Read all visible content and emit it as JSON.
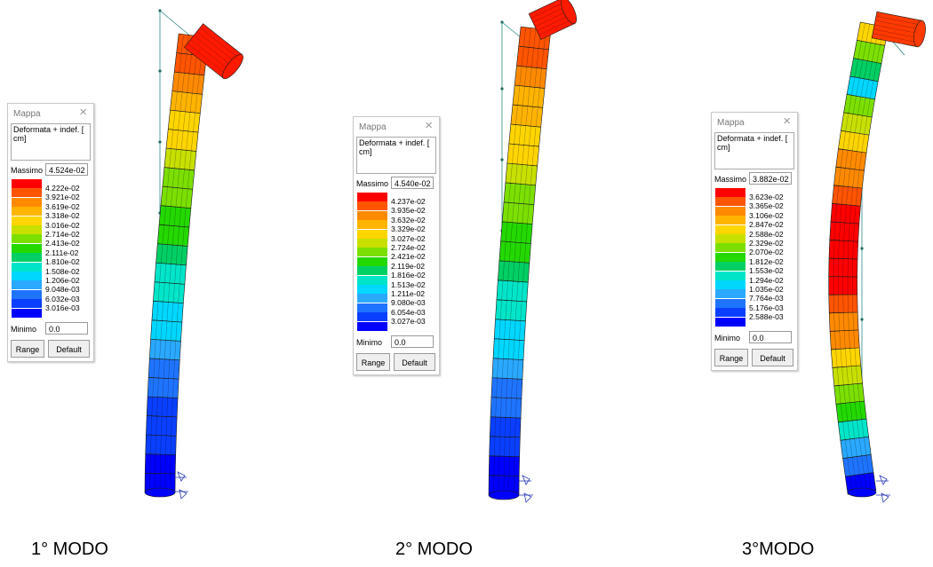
{
  "colormap": [
    "#0000ff",
    "#0a3fff",
    "#1f74ff",
    "#2aa9ff",
    "#00d7ff",
    "#00e5c8",
    "#00cf63",
    "#24d900",
    "#7be000",
    "#c8e000",
    "#ffd500",
    "#ffb400",
    "#ff8a00",
    "#ff5400",
    "#ff0000"
  ],
  "modes": [
    {
      "panel": {
        "title": "Mappa",
        "close": "×",
        "description": "Deformata + indef. [ cm]",
        "max_label": "Massimo",
        "max_value": "4.524e-02",
        "min_label": "Minimo",
        "min_value": "0.0",
        "range_button": "Range",
        "default_button": "Default",
        "ticks": [
          "4.222e-02",
          "3.921e-02",
          "3.619e-02",
          "3.318e-02",
          "3.016e-02",
          "2.714e-02",
          "2.413e-02",
          "2.111e-02",
          "1.810e-02",
          "1.508e-02",
          "1.206e-02",
          "9.048e-03",
          "6.032e-03",
          "3.016e-03"
        ]
      },
      "caption": "1° MODO",
      "shape": "bent-top"
    },
    {
      "panel": {
        "title": "Mappa",
        "close": "×",
        "description": "Deformata + indef. [ cm]",
        "max_label": "Massimo",
        "max_value": "4.540e-02",
        "min_label": "Minimo",
        "min_value": "0.0",
        "range_button": "Range",
        "default_button": "Default",
        "ticks": [
          "4.237e-02",
          "3.935e-02",
          "3.632e-02",
          "3.329e-02",
          "3.027e-02",
          "2.724e-02",
          "2.421e-02",
          "2.119e-02",
          "1.816e-02",
          "1.513e-02",
          "1.211e-02",
          "9.080e-03",
          "6.054e-03",
          "3.027e-03"
        ]
      },
      "caption": "2° MODO",
      "shape": "bent-top"
    },
    {
      "panel": {
        "title": "Mappa",
        "close": "×",
        "description": "Deformata + indef. [ cm]",
        "max_label": "Massimo",
        "max_value": "3.882e-02",
        "min_label": "Minimo",
        "min_value": "0.0",
        "range_button": "Range",
        "default_button": "Default",
        "ticks": [
          "3.623e-02",
          "3.365e-02",
          "3.106e-02",
          "2.847e-02",
          "2.588e-02",
          "2.329e-02",
          "2.070e-02",
          "1.812e-02",
          "1.553e-02",
          "1.294e-02",
          "1.035e-02",
          "7.764e-03",
          "5.176e-03",
          "2.588e-03"
        ]
      },
      "caption": "3°MODO",
      "shape": "bulge-middle"
    }
  ]
}
